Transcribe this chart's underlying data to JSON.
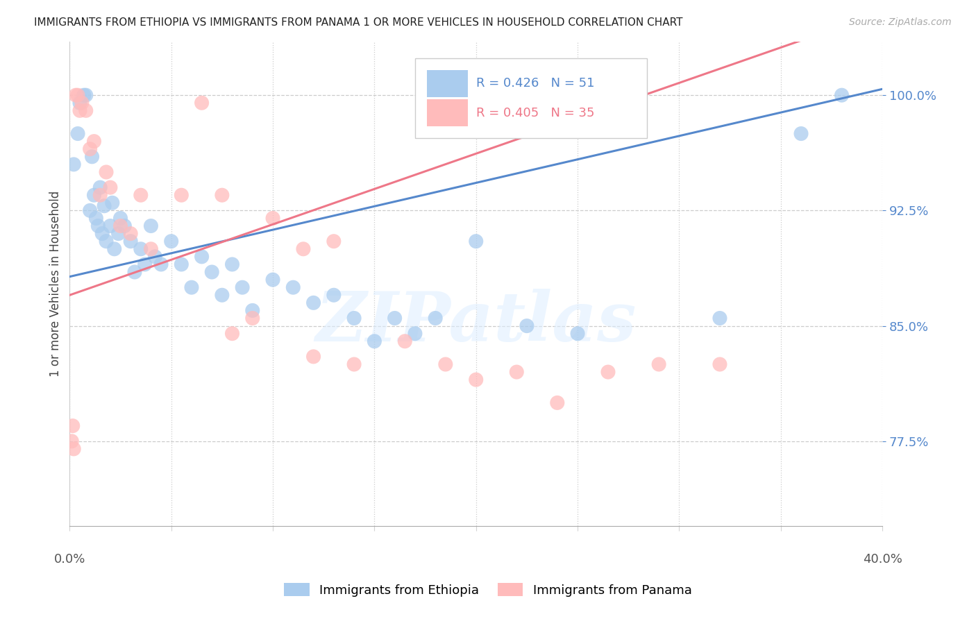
{
  "title": "IMMIGRANTS FROM ETHIOPIA VS IMMIGRANTS FROM PANAMA 1 OR MORE VEHICLES IN HOUSEHOLD CORRELATION CHART",
  "source": "Source: ZipAtlas.com",
  "ylabel": "1 or more Vehicles in Household",
  "ytick_values": [
    77.5,
    85.0,
    92.5,
    100.0
  ],
  "ytick_labels": [
    "77.5%",
    "85.0%",
    "92.5%",
    "100.0%"
  ],
  "xlim": [
    0.0,
    40.0
  ],
  "ylim": [
    72.0,
    103.5
  ],
  "ethiopia_R": 0.426,
  "ethiopia_N": 51,
  "panama_R": 0.405,
  "panama_N": 35,
  "ethiopia_color": "#AACCEE",
  "panama_color": "#FFBBBB",
  "ethiopia_line_color": "#5588CC",
  "panama_line_color": "#EE7788",
  "ethiopia_x": [
    0.2,
    0.4,
    0.5,
    0.7,
    0.8,
    1.0,
    1.1,
    1.2,
    1.3,
    1.4,
    1.5,
    1.6,
    1.7,
    1.8,
    2.0,
    2.1,
    2.2,
    2.4,
    2.5,
    2.7,
    3.0,
    3.2,
    3.5,
    3.7,
    4.0,
    4.2,
    4.5,
    5.0,
    5.5,
    6.0,
    6.5,
    7.0,
    7.5,
    8.0,
    8.5,
    9.0,
    10.0,
    11.0,
    12.0,
    13.0,
    14.0,
    15.0,
    16.0,
    17.0,
    18.0,
    20.0,
    22.5,
    25.0,
    32.0,
    36.0,
    38.0
  ],
  "ethiopia_y": [
    95.5,
    97.5,
    99.5,
    100.0,
    100.0,
    92.5,
    96.0,
    93.5,
    92.0,
    91.5,
    94.0,
    91.0,
    92.8,
    90.5,
    91.5,
    93.0,
    90.0,
    91.0,
    92.0,
    91.5,
    90.5,
    88.5,
    90.0,
    89.0,
    91.5,
    89.5,
    89.0,
    90.5,
    89.0,
    87.5,
    89.5,
    88.5,
    87.0,
    89.0,
    87.5,
    86.0,
    88.0,
    87.5,
    86.5,
    87.0,
    85.5,
    84.0,
    85.5,
    84.5,
    85.5,
    90.5,
    85.0,
    84.5,
    85.5,
    97.5,
    100.0
  ],
  "panama_x": [
    0.1,
    0.15,
    0.2,
    0.3,
    0.4,
    0.5,
    0.6,
    0.8,
    1.0,
    1.2,
    1.5,
    1.8,
    2.0,
    2.5,
    3.0,
    3.5,
    4.0,
    5.5,
    6.5,
    7.5,
    8.0,
    9.0,
    10.0,
    11.5,
    12.0,
    13.0,
    14.0,
    16.5,
    18.5,
    20.0,
    22.0,
    24.0,
    26.5,
    29.0,
    32.0
  ],
  "panama_y": [
    77.5,
    78.5,
    77.0,
    100.0,
    100.0,
    99.0,
    99.5,
    99.0,
    96.5,
    97.0,
    93.5,
    95.0,
    94.0,
    91.5,
    91.0,
    93.5,
    90.0,
    93.5,
    99.5,
    93.5,
    84.5,
    85.5,
    92.0,
    90.0,
    83.0,
    90.5,
    82.5,
    84.0,
    82.5,
    81.5,
    82.0,
    80.0,
    82.0,
    82.5,
    82.5
  ],
  "legend_eth_text": "R = 0.426   N = 51",
  "legend_pan_text": "R = 0.405   N = 35",
  "watermark": "ZIPatlas",
  "bottom_legend_eth": "Immigrants from Ethiopia",
  "bottom_legend_pan": "Immigrants from Panama"
}
